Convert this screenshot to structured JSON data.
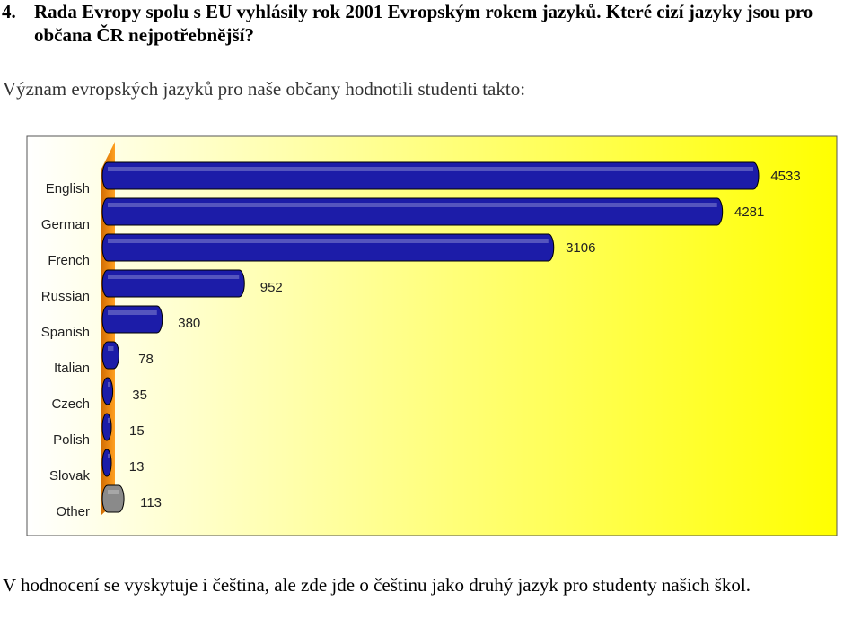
{
  "heading": {
    "number": "4.",
    "text": "Rada Evropy spolu s EU vyhlásily rok 2001 Evropským rokem jazyků. Které cizí jazyky jsou pro občana ČR nejpotřebnější?"
  },
  "intro": "Význam evropských jazyků pro naše občany hodnotili studenti takto:",
  "chart_data": {
    "type": "bar",
    "categories": [
      "English",
      "German",
      "French",
      "Russian",
      "Spanish",
      "Italian",
      "Czech",
      "Polish",
      "Slovak",
      "Other"
    ],
    "values": [
      4533,
      4281,
      3106,
      952,
      380,
      78,
      35,
      15,
      13,
      113
    ],
    "colors": [
      "#1c1ca8",
      "#1c1ca8",
      "#1c1ca8",
      "#1c1ca8",
      "#1c1ca8",
      "#1c1ca8",
      "#1c1ca8",
      "#1c1ca8",
      "#1c1ca8",
      "#8a8a8a"
    ]
  },
  "footer": "V hodnocení se vyskytuje i čeština, ale zde jde o češtinu jako druhý jazyk pro studenty našich škol."
}
